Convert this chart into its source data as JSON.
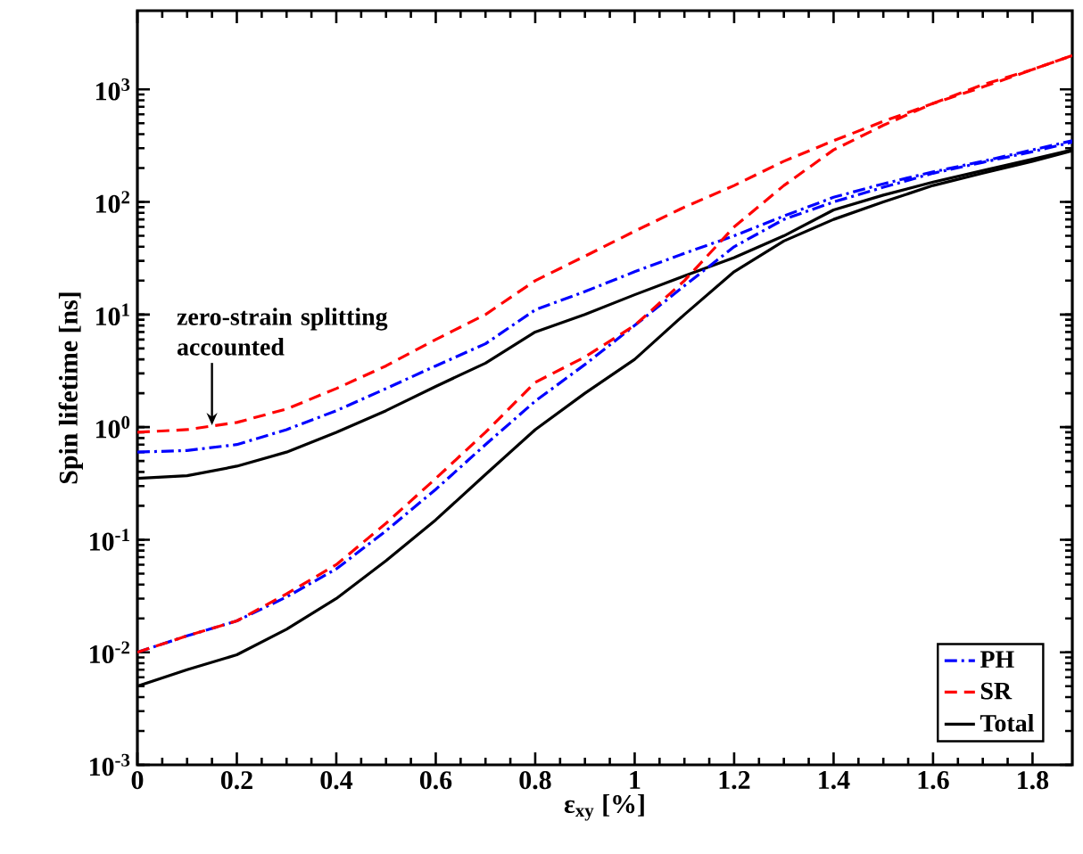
{
  "chart_data": {
    "type": "line",
    "xlabel": "ε$_{xy}$ [%]",
    "ylabel": "Spin lifetime [ns]",
    "log": "y",
    "legend": "bottom right",
    "xlim": [
      0,
      1.88
    ],
    "ylim": [
      0.001,
      5000
    ],
    "xticks": [
      0,
      0.2,
      0.4,
      0.6,
      0.8,
      1,
      1.2,
      1.4,
      1.6,
      1.8
    ],
    "yticks": [
      {
        "value": 0.001,
        "label": "10$^{-3}$"
      },
      {
        "value": 0.01,
        "label": "10$^{-2}$"
      },
      {
        "value": 0.1,
        "label": "10$^{-1}$"
      },
      {
        "value": 1,
        "label": "10$^{0}$"
      },
      {
        "value": 10,
        "label": "10$^{1}$"
      },
      {
        "value": 100,
        "label": "10$^{2}$"
      },
      {
        "value": 1000,
        "label": "10$^{3}$"
      }
    ],
    "annotations": [
      {
        "text": "zero-strain splitting accounted",
        "x": 0.15,
        "y": 1
      }
    ],
    "series": [
      {
        "name": "PH",
        "color": "#0000ff",
        "line_style": "dashdot",
        "x": [
          0,
          0.1,
          0.2,
          0.3,
          0.4,
          0.5,
          0.6,
          0.7,
          0.8,
          0.9,
          1.0,
          1.1,
          1.2,
          1.3,
          1.4,
          1.5,
          1.6,
          1.7,
          1.8,
          1.88
        ],
        "values": [
          0.6,
          0.62,
          0.7,
          0.95,
          1.4,
          2.2,
          3.5,
          5.5,
          11,
          16,
          24,
          35,
          50,
          75,
          110,
          145,
          185,
          230,
          290,
          350
        ]
      },
      {
        "name": "SR",
        "color": "#ff0000",
        "line_style": "dashed",
        "x": [
          0,
          0.1,
          0.2,
          0.3,
          0.4,
          0.5,
          0.6,
          0.7,
          0.8,
          0.9,
          1.0,
          1.1,
          1.2,
          1.3,
          1.4,
          1.5,
          1.6,
          1.7,
          1.8,
          1.88
        ],
        "values": [
          0.9,
          0.95,
          1.1,
          1.45,
          2.2,
          3.5,
          6,
          10,
          20,
          33,
          55,
          90,
          140,
          230,
          350,
          520,
          750,
          1050,
          1500,
          2000
        ]
      },
      {
        "name": "Total",
        "color": "#000000",
        "line_style": "solid",
        "x": [
          0,
          0.1,
          0.2,
          0.3,
          0.4,
          0.5,
          0.6,
          0.7,
          0.8,
          0.9,
          1.0,
          1.1,
          1.2,
          1.3,
          1.4,
          1.5,
          1.6,
          1.7,
          1.8,
          1.88
        ],
        "values": [
          0.35,
          0.37,
          0.45,
          0.6,
          0.9,
          1.4,
          2.3,
          3.7,
          7,
          10,
          15,
          22,
          32,
          50,
          85,
          115,
          150,
          190,
          240,
          290
        ]
      },
      {
        "color": "#0000ff",
        "line_style": "dashdot",
        "x": [
          0,
          0.1,
          0.2,
          0.3,
          0.4,
          0.5,
          0.6,
          0.7,
          0.8,
          0.9,
          1.0,
          1.1,
          1.2,
          1.3,
          1.4,
          1.5,
          1.6,
          1.7,
          1.8,
          1.88
        ],
        "values": [
          0.01,
          0.014,
          0.019,
          0.031,
          0.055,
          0.12,
          0.28,
          0.7,
          1.7,
          3.6,
          8,
          18,
          40,
          70,
          100,
          135,
          180,
          225,
          280,
          340
        ]
      },
      {
        "color": "#ff0000",
        "line_style": "dashed",
        "x": [
          0,
          0.1,
          0.2,
          0.3,
          0.4,
          0.5,
          0.6,
          0.7,
          0.8,
          0.9,
          1.0,
          1.1,
          1.2,
          1.3,
          1.4,
          1.5,
          1.6,
          1.7,
          1.8,
          1.88
        ],
        "values": [
          0.01,
          0.014,
          0.019,
          0.033,
          0.06,
          0.14,
          0.35,
          0.9,
          2.5,
          4.2,
          8,
          20,
          60,
          140,
          290,
          480,
          750,
          1100,
          1500,
          2000
        ]
      },
      {
        "color": "#000000",
        "line_style": "solid",
        "x": [
          0,
          0.1,
          0.2,
          0.3,
          0.4,
          0.5,
          0.6,
          0.7,
          0.8,
          0.9,
          1.0,
          1.1,
          1.2,
          1.3,
          1.4,
          1.5,
          1.6,
          1.7,
          1.8,
          1.88
        ],
        "values": [
          0.005,
          0.007,
          0.0095,
          0.016,
          0.03,
          0.065,
          0.15,
          0.38,
          0.95,
          2,
          4,
          10,
          24,
          45,
          70,
          100,
          140,
          180,
          230,
          285
        ]
      }
    ]
  }
}
